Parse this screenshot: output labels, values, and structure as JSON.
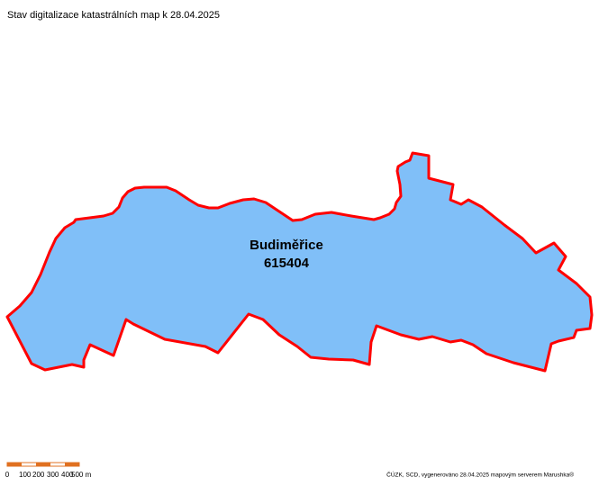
{
  "title": "Stav digitalizace katastrálních map k 28.04.2025",
  "area": {
    "name": "Budiměřice",
    "code": "615404"
  },
  "scale": {
    "labels": [
      "0",
      "100",
      "200",
      "300",
      "400",
      "500 m"
    ]
  },
  "credit": "ČÚZK, SCD, vygenerováno 28.04.2025 mapovým serverem Marushka®"
}
